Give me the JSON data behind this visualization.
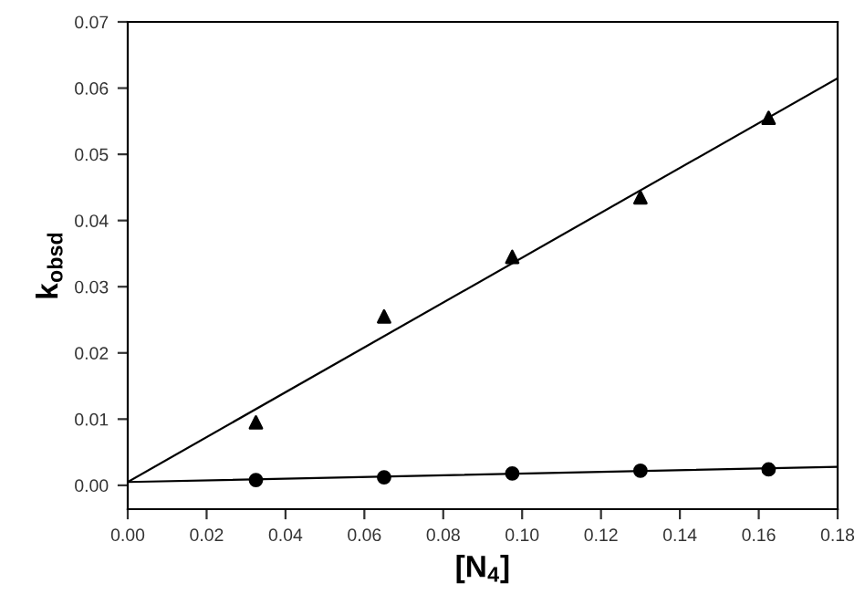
{
  "chart_data": {
    "type": "scatter",
    "xlabel": "[N$_{4}$]",
    "ylabel": "k$_{obsd}$",
    "xlim": [
      0,
      0.18
    ],
    "ylim": [
      -0.0036,
      0.07
    ],
    "xticks": [
      {
        "value": 0,
        "label": "0.00"
      },
      {
        "value": 0.02,
        "label": "0.02"
      },
      {
        "value": 0.04,
        "label": "0.04"
      },
      {
        "value": 0.06,
        "label": "0.06"
      },
      {
        "value": 0.08,
        "label": "0.08"
      },
      {
        "value": 0.1,
        "label": "0.10"
      },
      {
        "value": 0.12,
        "label": "0.12"
      },
      {
        "value": 0.14,
        "label": "0.14"
      },
      {
        "value": 0.16,
        "label": "0.16"
      },
      {
        "value": 0.18,
        "label": "0.18"
      }
    ],
    "yticks": [
      {
        "value": 0,
        "label": "0.00"
      },
      {
        "value": 0.01,
        "label": "0.01"
      },
      {
        "value": 0.02,
        "label": "0.02"
      },
      {
        "value": 0.03,
        "label": "0.03"
      },
      {
        "value": 0.04,
        "label": "0.04"
      },
      {
        "value": 0.05,
        "label": "0.05"
      },
      {
        "value": 0.06,
        "label": "0.06"
      },
      {
        "value": 0.07,
        "label": "0.07"
      }
    ],
    "grid": false,
    "legend": false,
    "series": [
      {
        "marker": "triangle",
        "color": "#000000",
        "x": [
          0.0325,
          0.065,
          0.0975,
          0.13,
          0.1625
        ],
        "values": [
          0.0095,
          0.0255,
          0.0345,
          0.0435,
          0.0555
        ]
      },
      {
        "marker": "circle",
        "color": "#000000",
        "x": [
          0.0325,
          0.065,
          0.0975,
          0.13,
          0.1625
        ],
        "values": [
          0.0008,
          0.0012,
          0.0018,
          0.0022,
          0.0024
        ]
      },
      {
        "type": "line",
        "marker": "none",
        "line_style": "solid",
        "color": "#000000",
        "x": [
          0,
          0.18
        ],
        "values": [
          0.0005,
          0.0615
        ]
      },
      {
        "type": "line",
        "marker": "none",
        "line_style": "solid",
        "color": "#000000",
        "x": [
          0,
          0.18
        ],
        "values": [
          0.0005,
          0.0028
        ]
      }
    ]
  }
}
